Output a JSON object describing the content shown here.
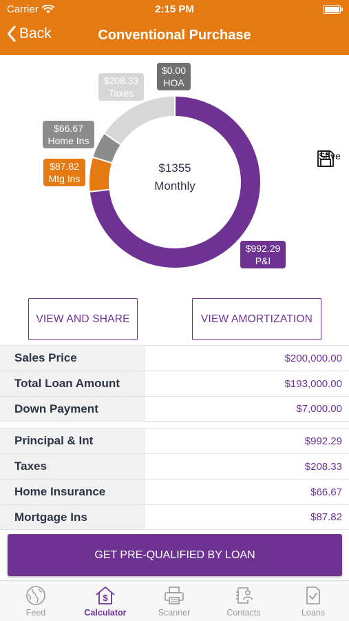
{
  "status_bar": {
    "carrier": "Carrier",
    "time": "2:15 PM"
  },
  "nav": {
    "back_label": "Back",
    "title": "Conventional Purchase"
  },
  "chart_data": {
    "type": "pie",
    "style": "donut",
    "center_amount": "$1355",
    "center_label": "Monthly",
    "slices": [
      {
        "label": "P&I",
        "amount": "$992.29",
        "value": 992.29,
        "color": "#6e3292"
      },
      {
        "label": "Mtg Ins",
        "amount": "$87.82",
        "value": 87.82,
        "color": "#e67a12"
      },
      {
        "label": "Home Ins",
        "amount": "$66.67",
        "value": 66.67,
        "color": "#8c8c8c"
      },
      {
        "label": "Taxes",
        "amount": "$208.33",
        "value": 208.33,
        "color": "#d7d7d7"
      },
      {
        "label": "HOA",
        "amount": "$0.00",
        "value": 0,
        "color": "#707070"
      }
    ]
  },
  "save": {
    "label": "Save",
    "icon": "floppy-disk-icon"
  },
  "buttons": {
    "view_share": "VIEW AND SHARE",
    "view_amortization": "VIEW AMORTIZATION"
  },
  "summary": [
    {
      "label": "Sales Price",
      "value": "$200,000.00"
    },
    {
      "label": "Total Loan Amount",
      "value": "$193,000.00"
    },
    {
      "label": "Down Payment",
      "value": "$7,000.00"
    }
  ],
  "monthly": [
    {
      "label": "Principal & Int",
      "value": "$992.29"
    },
    {
      "label": "Taxes",
      "value": "$208.33"
    },
    {
      "label": "Home Insurance",
      "value": "$66.67"
    },
    {
      "label": "Mortgage Ins",
      "value": "$87.82"
    }
  ],
  "cta": {
    "label": "GET PRE-QUALIFIED BY LOAN"
  },
  "tabs": [
    {
      "label": "Feed",
      "icon": "globe-icon"
    },
    {
      "label": "Calculator",
      "icon": "calculator-house-icon",
      "active": true
    },
    {
      "label": "Scanner",
      "icon": "printer-icon"
    },
    {
      "label": "Contacts",
      "icon": "contacts-icon"
    },
    {
      "label": "Loans",
      "icon": "document-check-icon"
    }
  ],
  "colors": {
    "brand_orange": "#e67a12",
    "brand_purple": "#6e3292",
    "label_gray": "#f1f1f1"
  }
}
